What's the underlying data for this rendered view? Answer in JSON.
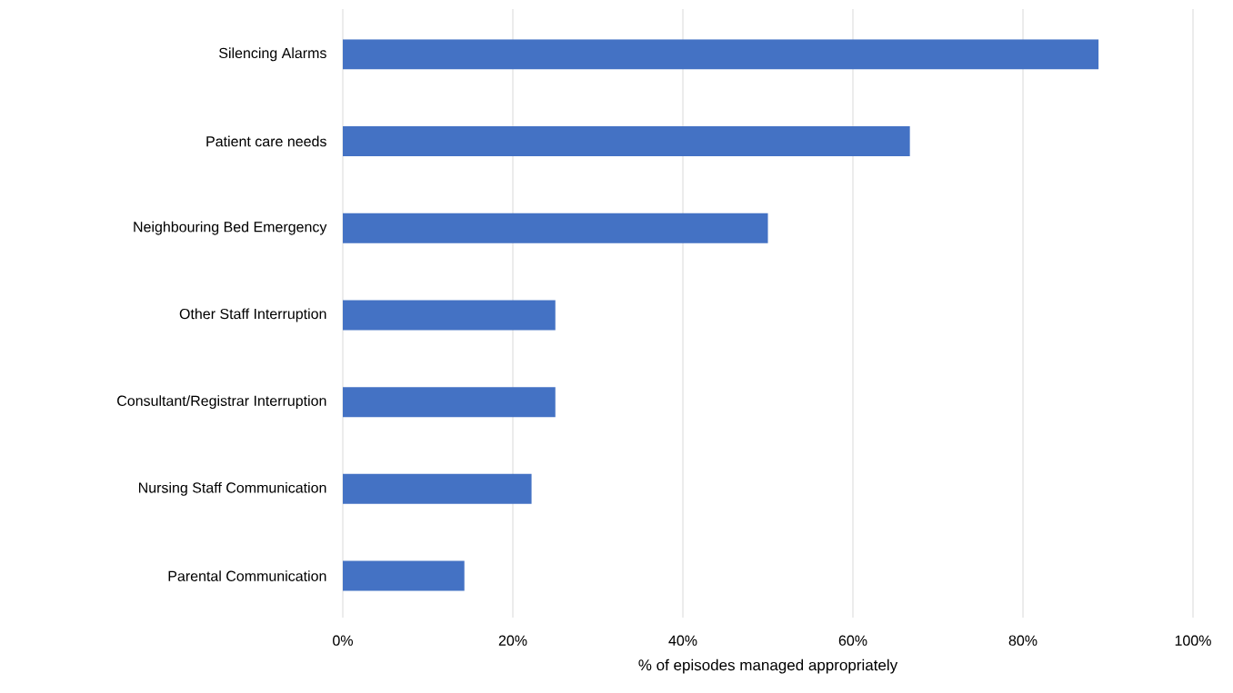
{
  "chart_data": {
    "type": "bar",
    "orientation": "horizontal",
    "xlabel": "% of episodes managed appropriately",
    "categories": [
      "Silencing Alarms",
      "Patient care needs",
      "Neighbouring Bed Emergency",
      "Other Staff Interruption",
      "Consultant/Registrar Interruption",
      "Nursing Staff Communication",
      "Parental Communication"
    ],
    "values": [
      88.9,
      66.7,
      50,
      25,
      25,
      22.2,
      14.3
    ],
    "color": "#4472c4",
    "xlim": [
      0,
      100
    ],
    "xticks": [
      {
        "value": 0,
        "label": "0%"
      },
      {
        "value": 20,
        "label": "20%"
      },
      {
        "value": 40,
        "label": "40%"
      },
      {
        "value": 60,
        "label": "60%"
      },
      {
        "value": 80,
        "label": "80%"
      },
      {
        "value": 100,
        "label": "100%"
      }
    ],
    "grid": "x"
  }
}
